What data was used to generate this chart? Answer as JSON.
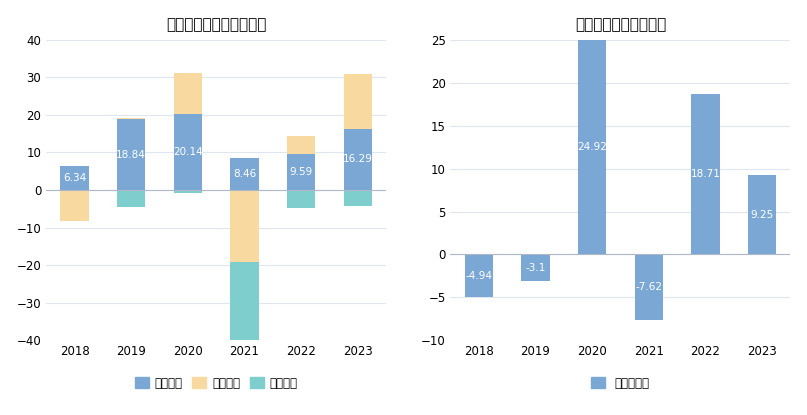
{
  "left_title": "柳工现金流净额（亿元）",
  "right_title": "自由现金流量（亿元）",
  "years": [
    2018,
    2019,
    2020,
    2021,
    2022,
    2023
  ],
  "operating": [
    6.34,
    18.84,
    20.14,
    8.46,
    9.59,
    16.29
  ],
  "financing": [
    -8.3,
    0.3,
    10.9,
    -19.2,
    4.8,
    14.5
  ],
  "investing": [
    0.0,
    -4.5,
    -0.8,
    -26.2,
    -4.7,
    -4.3
  ],
  "free_cash": [
    -4.94,
    -3.1,
    24.92,
    -7.62,
    18.71,
    9.25
  ],
  "operating_color": "#7ba7d4",
  "financing_color": "#f8d9a0",
  "investing_color": "#7ecece",
  "free_cash_color": "#7ba7d4",
  "left_ylim": [
    -40,
    40
  ],
  "right_ylim": [
    -10,
    25
  ],
  "bg_color": "#ffffff",
  "grid_color": "#e0e6ef",
  "zero_line_color": "#b0b8c8",
  "legend_labels_left": [
    "经营活动",
    "筹资活动",
    "投资活动"
  ],
  "legend_labels_right": [
    "自由现金流"
  ],
  "label_fontsize": 7.5
}
